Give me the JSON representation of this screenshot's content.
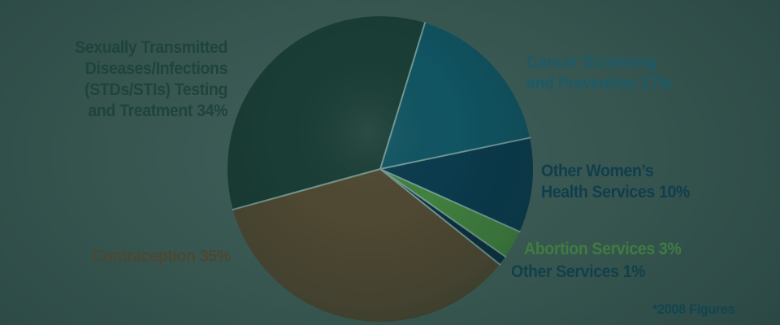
{
  "chart_data": {
    "type": "pie",
    "title": "",
    "note": "*2008 Figures",
    "note_color": "#12454e",
    "separator_color": "#7fa49e",
    "center": [
      468,
      208
    ],
    "radius": 188,
    "start_angle_deg": 17,
    "slices": [
      {
        "id": "cancer-screening",
        "name": "Cancer Screening and Prevention",
        "pct": 17,
        "color": "#115462",
        "label_color": "#1b5b68",
        "lines": [
          "Cancer Screening",
          "and Prevention 17%"
        ]
      },
      {
        "id": "other-womens-health",
        "name": "Other Women's Health Services",
        "pct": 10,
        "color": "#0b3b4d",
        "label_color": "#103e4d",
        "lines": [
          "Other Women’s",
          "Health Services 10%"
        ]
      },
      {
        "id": "abortion-services",
        "name": "Abortion Services",
        "pct": 3,
        "color": "#41803f",
        "label_color": "#3f7c41",
        "lines": [
          "Abortion Services 3%"
        ]
      },
      {
        "id": "other-services",
        "name": "Other Services",
        "pct": 1,
        "color": "#0c3140",
        "label_color": "#124049",
        "lines": [
          "Other Services 1%"
        ]
      },
      {
        "id": "contraception",
        "name": "Contraception",
        "pct": 35,
        "color": "#4f4933",
        "label_color": "#4b4733",
        "lines": [
          "Contraception 35%"
        ]
      },
      {
        "id": "stds",
        "name": "Sexually Transmitted Diseases/Infections (STDs/STIs) Testing and Treatment",
        "pct": 34,
        "color": "#1a3e36",
        "label_color": "#1e443c",
        "lines": [
          "Sexually Transmitted",
          "Diseases/Infections",
          "(STDs/STIs) Testing",
          "and Treatment 34%"
        ]
      }
    ]
  }
}
